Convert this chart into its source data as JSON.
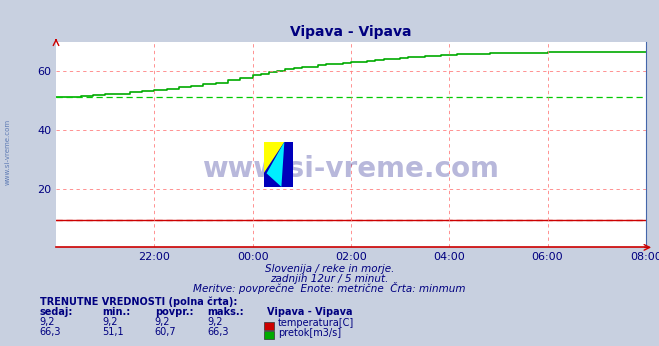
{
  "title": "Vipava - Vipava",
  "bg_color": "#c8d0e0",
  "plot_bg_color": "#ffffff",
  "title_color": "#000080",
  "axis_color": "#000080",
  "grid_color": "#ff8080",
  "xlim": [
    0,
    144
  ],
  "ylim": [
    0,
    70
  ],
  "yticks": [
    20,
    40,
    60
  ],
  "xtick_labels": [
    "22:00",
    "00:00",
    "02:00",
    "04:00",
    "06:00",
    "08:00"
  ],
  "xtick_positions": [
    24,
    48,
    72,
    96,
    120,
    144
  ],
  "temp_color": "#cc0000",
  "flow_color": "#00aa00",
  "flow_min_color": "#00cc00",
  "temp_value": 9.2,
  "flow_min_value": 51.1,
  "watermark_text": "www.si-vreme.com",
  "watermark_color": "#000080",
  "sidebar_text": "www.si-vreme.com",
  "sidebar_color": "#4466aa",
  "subtitle1": "Slovenija / reke in morje.",
  "subtitle2": "zadnjih 12ur / 5 minut.",
  "subtitle3": "Meritve: povprečne  Enote: metrične  Črta: minmum",
  "legend_title": "TRENUTNE VREDNOSTI (polna črta):",
  "legend_headers": [
    "sedaj:",
    "min.:",
    "povpr.:",
    "maks.:",
    "Vipava - Vipava"
  ],
  "temp_row": [
    "9,2",
    "9,2",
    "9,2",
    "9,2",
    "temperatura[C]"
  ],
  "flow_row": [
    "66,3",
    "51,1",
    "60,7",
    "66,3",
    "pretok[m3/s]"
  ],
  "flow_data_x": [
    0,
    3,
    6,
    9,
    12,
    15,
    18,
    21,
    24,
    27,
    30,
    33,
    36,
    39,
    42,
    45,
    48,
    50,
    52,
    54,
    56,
    58,
    60,
    62,
    64,
    66,
    68,
    70,
    72,
    74,
    76,
    78,
    80,
    82,
    84,
    86,
    88,
    90,
    92,
    94,
    96,
    98,
    100,
    102,
    104,
    106,
    108,
    110,
    112,
    114,
    116,
    118,
    120,
    122,
    124,
    126,
    128,
    130,
    132,
    134,
    136,
    138,
    140,
    142,
    144
  ],
  "flow_data_y": [
    51.0,
    51.2,
    51.5,
    51.8,
    52.0,
    52.3,
    52.8,
    53.2,
    53.5,
    54.0,
    54.5,
    55.0,
    55.5,
    56.0,
    56.8,
    57.5,
    58.5,
    59.0,
    59.5,
    60.0,
    60.5,
    61.0,
    61.2,
    61.5,
    62.0,
    62.3,
    62.5,
    62.8,
    63.0,
    63.2,
    63.5,
    63.8,
    64.0,
    64.2,
    64.4,
    64.6,
    64.8,
    65.0,
    65.2,
    65.3,
    65.5,
    65.6,
    65.7,
    65.8,
    65.9,
    66.0,
    66.0,
    66.1,
    66.1,
    66.2,
    66.2,
    66.2,
    66.3,
    66.3,
    66.3,
    66.3,
    66.3,
    66.3,
    66.3,
    66.3,
    66.3,
    66.3,
    66.3,
    66.3,
    66.3
  ]
}
